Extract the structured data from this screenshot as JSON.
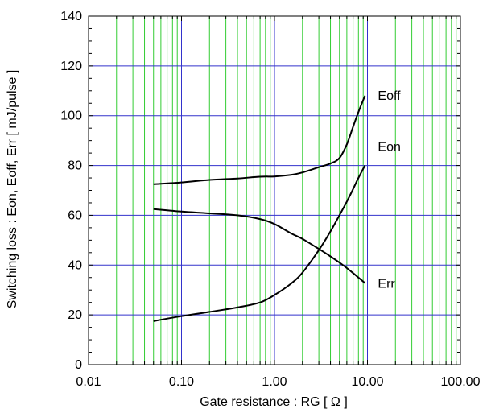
{
  "chart_data": {
    "type": "line",
    "xlabel": "Gate resistance : RG [ Ω ]",
    "ylabel": "Switching loss : Eon, Eoff, Err [ mJ/pulse ]",
    "x_scale": "log",
    "xlim": [
      0.01,
      100
    ],
    "ylim": [
      0,
      140
    ],
    "x_ticks": [
      0.01,
      0.1,
      1,
      10,
      100
    ],
    "x_tick_labels": [
      "0.01",
      "0.10",
      "1.00",
      "10.00",
      "100.00"
    ],
    "y_ticks": [
      0,
      20,
      40,
      60,
      80,
      100,
      120,
      140
    ],
    "y_tick_labels": [
      "0",
      "20",
      "40",
      "60",
      "80",
      "100",
      "120",
      "140"
    ],
    "grid": true,
    "colors": {
      "major_grid": "#3333cc",
      "minor_grid": "#33cc33",
      "curve": "#000000",
      "frame": "#000000"
    },
    "series": [
      {
        "name": "Eoff",
        "x": [
          0.05,
          0.1,
          0.2,
          0.4,
          0.7,
          1.0,
          1.5,
          2.0,
          3.0,
          4.0,
          5.0,
          6.0,
          7.0,
          8.0,
          9.4
        ],
        "y": [
          72.5,
          73.2,
          74.2,
          74.8,
          75.5,
          75.6,
          76.2,
          77.2,
          79.3,
          80.8,
          83.0,
          88.5,
          95.5,
          101.5,
          108
        ]
      },
      {
        "name": "Eon",
        "x": [
          0.05,
          0.1,
          0.2,
          0.4,
          0.7,
          1.0,
          1.5,
          2.0,
          3.0,
          4.0,
          5.0,
          6.0,
          7.0,
          8.0,
          9.4
        ],
        "y": [
          17.5,
          19.5,
          21.2,
          23.0,
          25.0,
          28.0,
          32.5,
          37.0,
          46.0,
          53.5,
          60.0,
          65.5,
          70.5,
          75.0,
          80.0
        ]
      },
      {
        "name": "Err",
        "x": [
          0.05,
          0.1,
          0.2,
          0.4,
          0.7,
          1.0,
          1.5,
          2.0,
          3.0,
          4.0,
          5.0,
          6.0,
          7.0,
          8.0,
          9.4
        ],
        "y": [
          62.5,
          61.5,
          60.8,
          60.0,
          58.5,
          56.5,
          52.8,
          50.5,
          46.5,
          43.5,
          41.0,
          38.8,
          36.8,
          35.0,
          32.8
        ]
      }
    ]
  }
}
